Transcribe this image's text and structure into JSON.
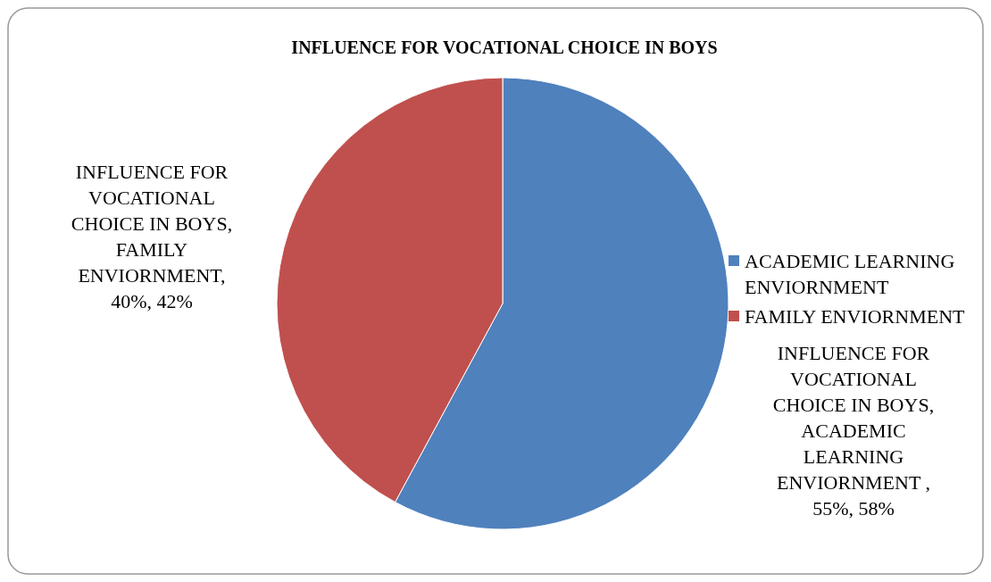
{
  "chart_data": {
    "type": "pie",
    "title": "INFLUENCE FOR VOCATIONAL CHOICE IN BOYS",
    "categories": [
      "ACADEMIC LEARNING ENVIORNMENT",
      "FAMILY ENVIORNMENT"
    ],
    "values": [
      55,
      40
    ],
    "colors": [
      "#4f81bd",
      "#c0504d"
    ],
    "value_labels": [
      "INFLUENCE FOR VOCATIONAL CHOICE IN BOYS, ACADEMIC LEARNING ENVIORNMENT , 55%, 58%",
      "INFLUENCE FOR VOCATIONAL CHOICE IN BOYS, FAMILY ENVIORNMENT, 40%, 42%"
    ],
    "legend": "right"
  }
}
